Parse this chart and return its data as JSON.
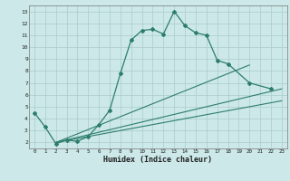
{
  "xlabel": "Humidex (Indice chaleur)",
  "bg_color": "#cce8e8",
  "grid_color": "#aacccc",
  "line_color": "#2d7d6e",
  "xlim": [
    -0.5,
    23.5
  ],
  "ylim": [
    1.5,
    13.5
  ],
  "xticks": [
    0,
    1,
    2,
    3,
    4,
    5,
    6,
    7,
    8,
    9,
    10,
    11,
    12,
    13,
    14,
    15,
    16,
    17,
    18,
    19,
    20,
    21,
    22,
    23
  ],
  "yticks": [
    2,
    3,
    4,
    5,
    6,
    7,
    8,
    9,
    10,
    11,
    12,
    13
  ],
  "line1_x": [
    0,
    1,
    2,
    3,
    4,
    5,
    6,
    7,
    8,
    9,
    10,
    11,
    12,
    13,
    14,
    15,
    16,
    17,
    18,
    20,
    22
  ],
  "line1_y": [
    4.5,
    3.3,
    1.9,
    2.2,
    2.1,
    2.5,
    3.5,
    4.7,
    7.8,
    10.6,
    11.4,
    11.5,
    11.1,
    13.0,
    11.8,
    11.2,
    11.0,
    8.9,
    8.6,
    7.0,
    6.5
  ],
  "line2_x": [
    2,
    23
  ],
  "line2_y": [
    2.0,
    6.5
  ],
  "line3_x": [
    2,
    23
  ],
  "line3_y": [
    2.0,
    6.5
  ],
  "line4_x": [
    3,
    20
  ],
  "line4_y": [
    2.2,
    8.6
  ],
  "line5_x": [
    4,
    23
  ],
  "line5_y": [
    2.2,
    6.5
  ],
  "fan_lines": [
    {
      "x": [
        2,
        20
      ],
      "y": [
        2.0,
        8.5
      ]
    },
    {
      "x": [
        2,
        23
      ],
      "y": [
        2.0,
        6.5
      ]
    },
    {
      "x": [
        2,
        23
      ],
      "y": [
        2.0,
        5.5
      ]
    }
  ]
}
